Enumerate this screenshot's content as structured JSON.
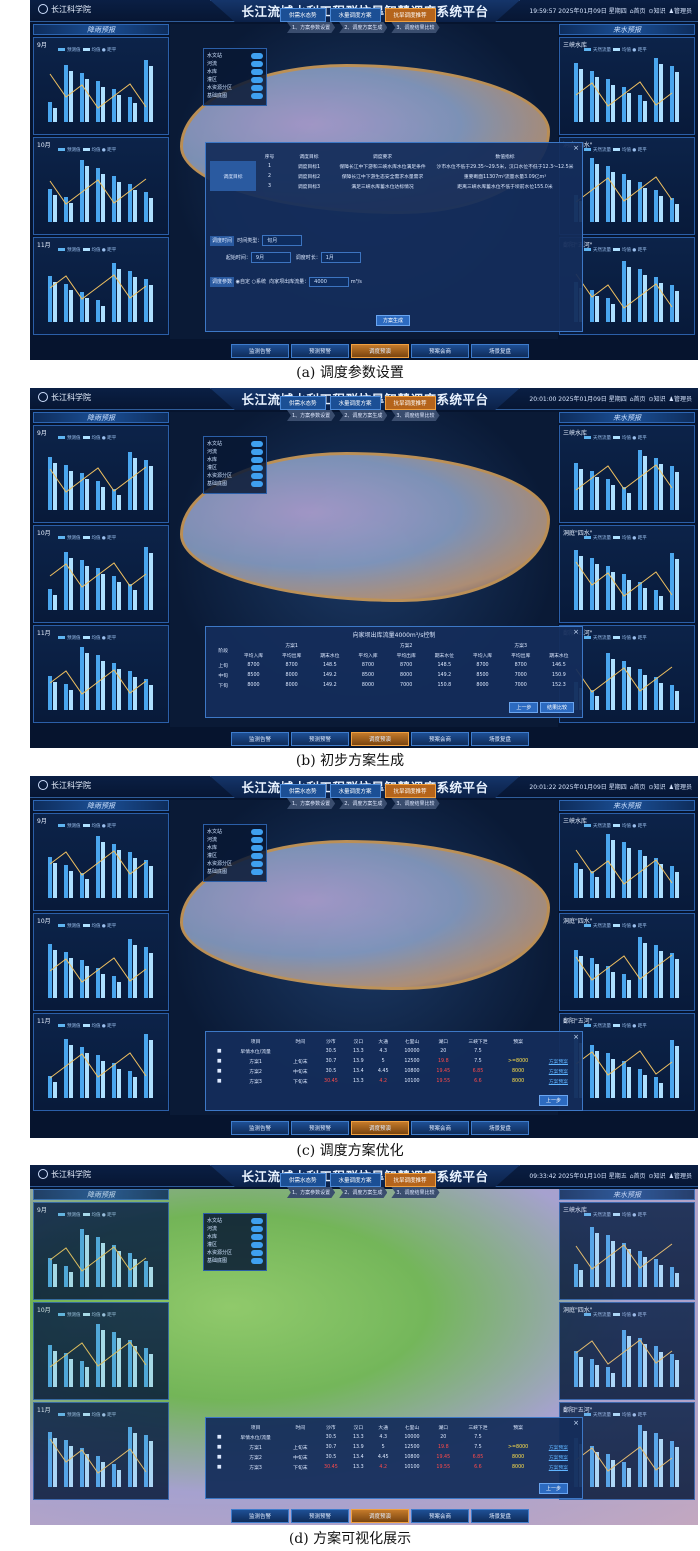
{
  "header": {
    "logo": "长江科学院",
    "title": "长江流域水利工程群抗旱智慧调度系统平台",
    "nav_home": "首页",
    "nav_knowledge": "知识",
    "nav_admin": "管理员"
  },
  "left_panel": {
    "title": "降雨预报",
    "cards": [
      {
        "label": "9月"
      },
      {
        "label": "10月"
      },
      {
        "label": "11月"
      }
    ],
    "legend": [
      "预测值",
      "均值",
      "距平"
    ]
  },
  "right_panel": {
    "title": "来水预报",
    "cards": [
      {
        "label": "三峡水库"
      },
      {
        "label": "洞庭\"四水\""
      },
      {
        "label": "鄱阳\"五河\""
      }
    ],
    "legend": [
      "天然流量",
      "均值",
      "距平"
    ]
  },
  "top_tabs": [
    "供需水态势",
    "水量调度方案",
    "抗旱调度推荐"
  ],
  "sub_steps": [
    "1、方案参数设置",
    "2、调度方案生成",
    "3、调度结果比较"
  ],
  "layers": [
    "水文站",
    "河流",
    "水库",
    "灌区",
    "水资源分区",
    "基础底图"
  ],
  "bottom_nav": [
    "监测告警",
    "预测预警",
    "调度预演",
    "预案会商",
    "场景复盘"
  ],
  "screens": [
    {
      "caption": "(a) 调度参数设置",
      "time": "19:59:57 2025年01月09日 星期四",
      "dialog": {
        "header": [
          "序号",
          "调度目标",
          "调度要求",
          "数值指标"
        ],
        "section_target": "调度目标",
        "rows": [
          [
            "1",
            "调度目标1",
            "保障长江中下游和三峡水库水位满足条件",
            "沙市水位不低于29.35～29.5米，汉口水位不低于12.3～12.5米"
          ],
          [
            "2",
            "调度目标2",
            "保障长江中下游生态安全需求水量需求",
            "重要断面11307m³流量水量3.09亿m³"
          ],
          [
            "3",
            "调度目标3",
            "满足三峡水库蓄水位达标情况",
            "距离三峡水库蓄水位不低于坝前水位155.0米"
          ]
        ],
        "section_time": "调度时间",
        "time_type_label": "时间类型：",
        "time_type_value": "旬月",
        "start_label": "起始时间：",
        "start_value": "9月",
        "length_label": "调度时长：",
        "length_value": "1月",
        "section_param": "调度参数",
        "opt1": "自定",
        "opt2": "系统",
        "param_label": "向家坝出库流量：",
        "param_value": "4000",
        "param_unit": "m³/s",
        "button": "方案生成"
      }
    },
    {
      "caption": "(b) 初步方案生成",
      "time": "20:01:00 2025年01月09日 星期四",
      "dialog": {
        "title": "向家坝出库流量4000m³/s控制",
        "groups": [
          "方案1",
          "方案2",
          "方案3"
        ],
        "subcols": [
          "平均入库",
          "平均出库",
          "期末水位"
        ],
        "section": "阶段",
        "rows": [
          [
            "上旬",
            "8700",
            "8700",
            "148.5",
            "8700",
            "8700",
            "148.5",
            "8700",
            "8700",
            "146.5"
          ],
          [
            "中旬",
            "8500",
            "8000",
            "149.2",
            "8500",
            "8000",
            "149.2",
            "8500",
            "7000",
            "150.9"
          ],
          [
            "下旬",
            "8000",
            "8000",
            "149.2",
            "8000",
            "7000",
            "150.8",
            "8000",
            "7000",
            "152.3"
          ]
        ],
        "buttons": [
          "上一步",
          "结果比较"
        ]
      }
    },
    {
      "caption": "(c) 调度方案优化",
      "time": "20:01:22 2025年01月09日 星期四",
      "dialog": {
        "header": [
          "项目",
          "时间",
          "沙市",
          "汉口",
          "大通",
          "七里山",
          "湖口",
          "三峡下泄",
          "预案"
        ],
        "rows": [
          [
            "早情水位/流量",
            "",
            "30.5",
            "13.3",
            "4.3",
            "10000",
            "20",
            "7.5",
            "",
            ""
          ],
          [
            "方案1",
            "上旬末",
            "30.7",
            "13.9",
            "5",
            "12500",
            "19.8",
            "7.5",
            ">=8000",
            "方案预案"
          ],
          [
            "方案2",
            "中旬末",
            "30.5",
            "13.4",
            "4.45",
            "10800",
            "19.45",
            "6.85",
            "8000",
            "方案预案"
          ],
          [
            "方案3",
            "下旬末",
            "30.45",
            "13.3",
            "4.2",
            "10100",
            "19.55",
            "6.6",
            "8000",
            "方案预案"
          ]
        ],
        "button": "上一步"
      }
    },
    {
      "caption": "(d) 方案可视化展示",
      "time": "09:33:42 2025年01月10日 星期五"
    }
  ]
}
